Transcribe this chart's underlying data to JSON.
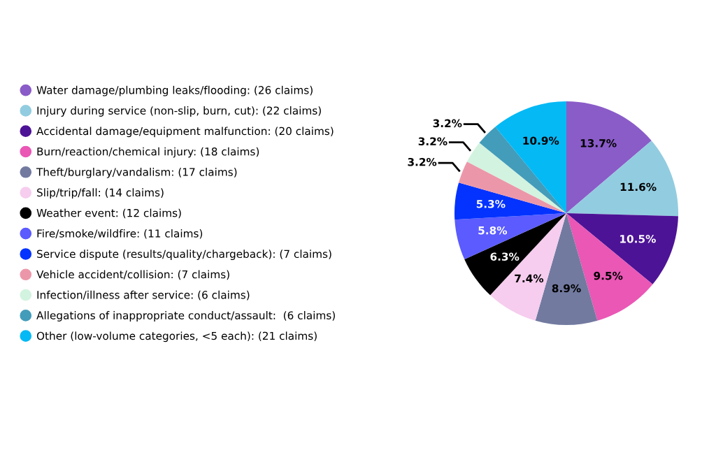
{
  "chart_data": {
    "type": "pie",
    "categories": [
      "Water damage/plumbing leaks/flooding: (26 claims)",
      "Injury during service (non-slip, burn, cut): (22 claims)",
      "Accidental damage/equipment malfunction: (20 claims)",
      "Burn/reaction/chemical injury: (18 claims)",
      "Theft/burglary/vandalism: (17 claims)",
      "Slip/trip/fall: (14 claims)",
      "Weather event: (12 claims)",
      "Fire/smoke/wildfire: (11 claims)",
      "Service dispute (results/quality/chargeback): (7 claims)",
      "Vehicle accident/collision: (7 claims)",
      "Infection/illness after service: (6 claims)",
      "Allegations of inappropriate conduct/assault:  (6 claims)",
      "Other (low-volume categories, <5 each): (21 claims)"
    ],
    "values": [
      13.7,
      11.6,
      10.5,
      9.5,
      8.9,
      7.4,
      6.3,
      5.8,
      5.3,
      3.2,
      3.2,
      3.2,
      10.9
    ],
    "value_labels": [
      "13.7%",
      "11.6%",
      "10.5%",
      "9.5%",
      "8.9%",
      "7.4%",
      "6.3%",
      "5.8%",
      "5.3%",
      "3.2%",
      "3.2%",
      "3.2%",
      "10.9%"
    ],
    "colors": [
      "#8a5cc8",
      "#92cce0",
      "#4d1396",
      "#ea57b5",
      "#727aa0",
      "#f6cdee",
      "#000000",
      "#5b5bff",
      "#0433ff",
      "#ec97a9",
      "#d2f3df",
      "#439cba",
      "#05b9f5"
    ],
    "legend": "left"
  }
}
